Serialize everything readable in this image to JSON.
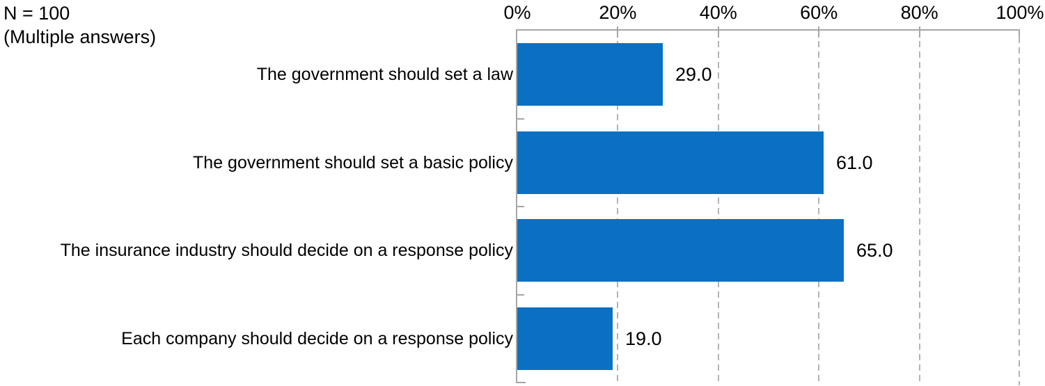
{
  "note": {
    "line1": "N = 100",
    "line2": "(Multiple answers)"
  },
  "chart_data": {
    "type": "bar",
    "orientation": "horizontal",
    "title": "",
    "xlabel": "",
    "ylabel": "",
    "categories": [
      "The government should set a law",
      "The government should set a basic policy",
      "The insurance industry should decide on a response policy",
      "Each company should decide on a response policy"
    ],
    "values": [
      29.0,
      61.0,
      65.0,
      19.0
    ],
    "value_labels": [
      "29.0",
      "61.0",
      "65.0",
      "19.0"
    ],
    "axis": {
      "position": "top",
      "xlim": [
        0,
        100
      ],
      "tick_labels": [
        "0%",
        "20%",
        "40%",
        "60%",
        "80%",
        "100%"
      ],
      "tick_values": [
        0,
        20,
        40,
        60,
        80,
        100
      ]
    },
    "gridlines": {
      "style": "dashed",
      "values": [
        20,
        40,
        60,
        80,
        100
      ]
    },
    "legend": "none",
    "colors": {
      "bar": "#0B70C2",
      "axis": "#A6A6A6",
      "gridline": "#B3B3B3",
      "text": "#000000",
      "background": "#FFFFFF"
    }
  }
}
